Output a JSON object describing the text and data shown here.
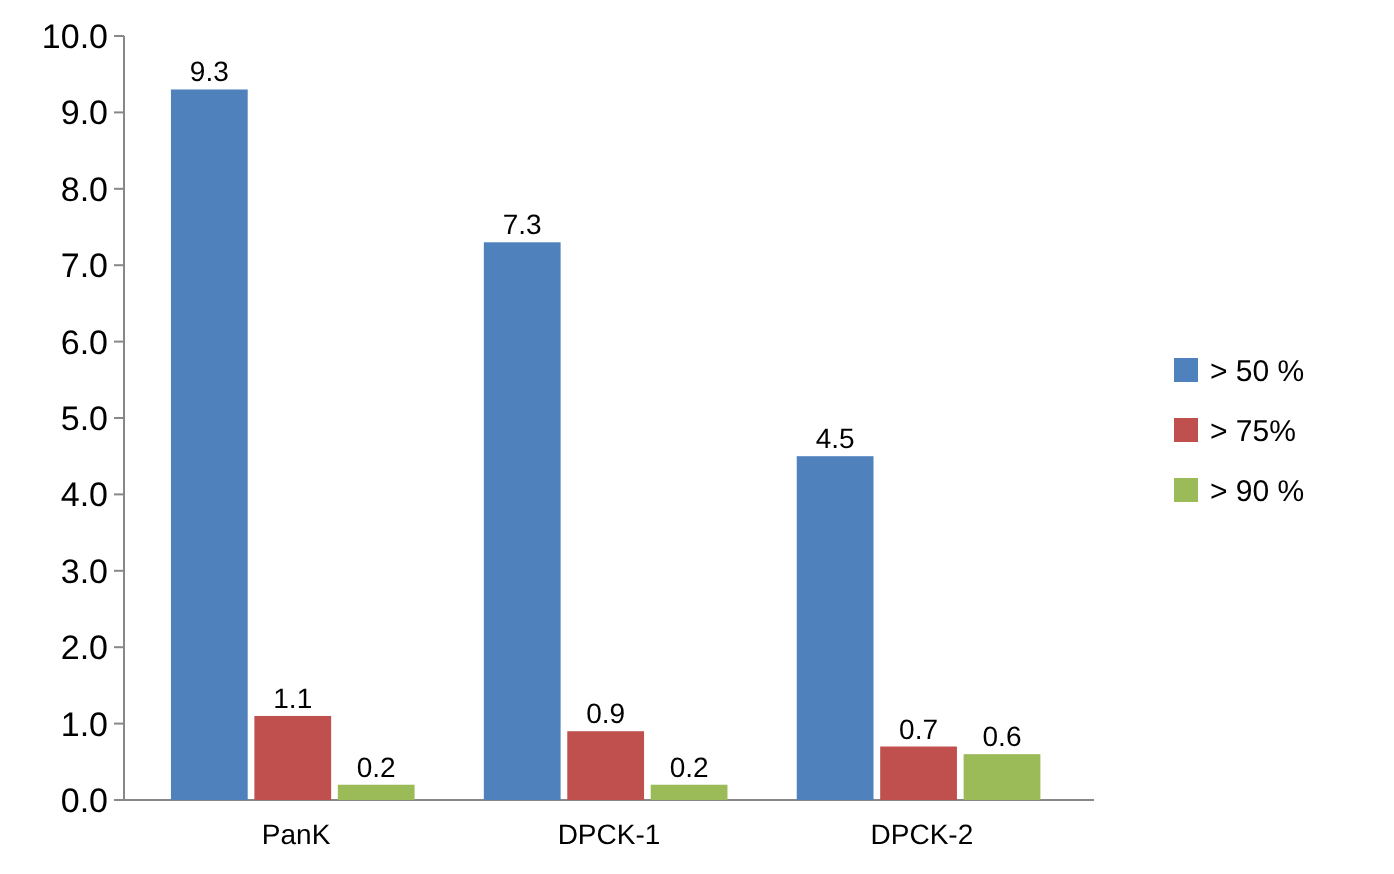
{
  "chart_data": {
    "type": "bar",
    "categories": [
      "PanK",
      "DPCK-1",
      "DPCK-2"
    ],
    "series": [
      {
        "name": "> 50 %",
        "color": "#4f81bd",
        "values": [
          9.3,
          7.3,
          4.5
        ]
      },
      {
        "name": "> 75%",
        "color": "#c0504d",
        "values": [
          1.1,
          0.9,
          0.7
        ]
      },
      {
        "name": "> 90 %",
        "color": "#9bbb59",
        "values": [
          0.2,
          0.2,
          0.6
        ]
      }
    ],
    "ylim": [
      0,
      10
    ],
    "yticks": [
      {
        "value": 0,
        "label": "0.0"
      },
      {
        "value": 1,
        "label": "1.0"
      },
      {
        "value": 2,
        "label": "2.0"
      },
      {
        "value": 3,
        "label": "3.0"
      },
      {
        "value": 4,
        "label": "4.0"
      },
      {
        "value": 5,
        "label": "5.0"
      },
      {
        "value": 6,
        "label": "6.0"
      },
      {
        "value": 7,
        "label": "7.0"
      },
      {
        "value": 8,
        "label": "8.0"
      },
      {
        "value": 9,
        "label": "9.0"
      },
      {
        "value": 10,
        "label": "10.0"
      }
    ],
    "data_labels": true,
    "legend": "right"
  }
}
